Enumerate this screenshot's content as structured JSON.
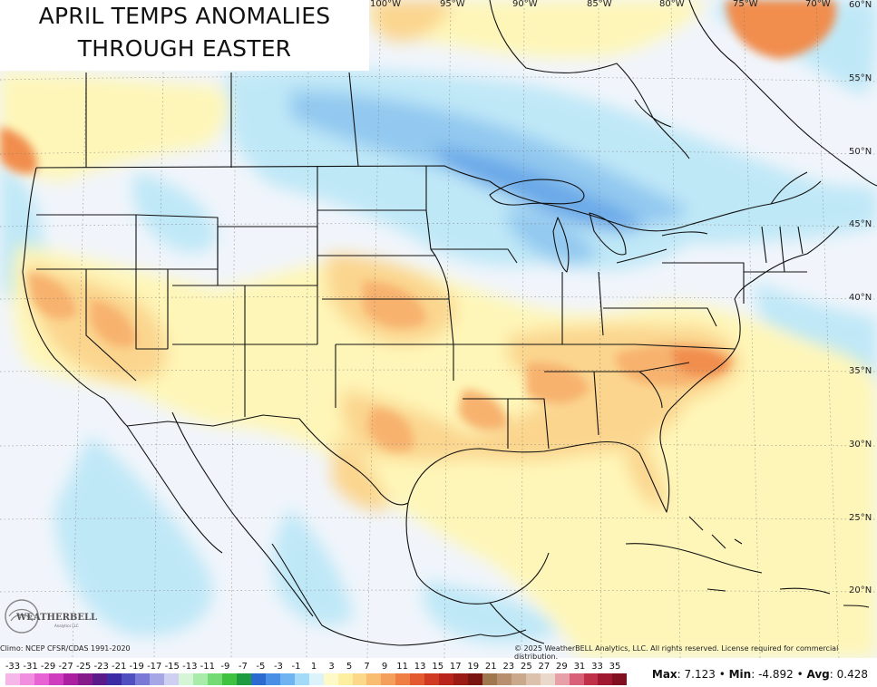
{
  "title": {
    "line1": "APRIL TEMPS ANOMALIES",
    "line2": "THROUGH EASTER"
  },
  "longitude_labels": [
    "100°W",
    "95°W",
    "90°W",
    "85°W",
    "80°W",
    "75°W",
    "70°W"
  ],
  "latitude_labels": [
    "60°N",
    "55°N",
    "50°N",
    "45°N",
    "40°N",
    "35°N",
    "30°N",
    "25°N",
    "20°N"
  ],
  "logo": {
    "name": "WEATHERBELL",
    "sub": "Analytics LLC"
  },
  "footer": {
    "climo": "Climo: NCEP CFSR/CDAS 1991-2020",
    "copyright": "© 2025 WeatherBELL Analytics, LLC. All rights reserved. License required for commercial distribution."
  },
  "legend": {
    "ticks": [
      "-33",
      "-31",
      "-29",
      "-27",
      "-25",
      "-23",
      "-21",
      "-19",
      "-17",
      "-15",
      "-13",
      "-11",
      "-9",
      "-7",
      "-5",
      "-3",
      "-1",
      "1",
      "3",
      "5",
      "7",
      "9",
      "11",
      "13",
      "15",
      "17",
      "19",
      "21",
      "23",
      "25",
      "27",
      "29",
      "31",
      "33",
      "35"
    ],
    "colors": [
      "#f6b6e8",
      "#f28ee0",
      "#e763d3",
      "#cf3cbe",
      "#ab1fa1",
      "#861a8a",
      "#5b1a8a",
      "#3b2ba4",
      "#4f4fc0",
      "#7a7ad6",
      "#a6a6e6",
      "#cfcff2",
      "#d6f5d6",
      "#a9eca9",
      "#74db74",
      "#3fc23f",
      "#1f9a3f",
      "#2d6ad0",
      "#4a8fe6",
      "#6fb3f2",
      "#a3daf7",
      "#dcf3fb",
      "#fefac8",
      "#fdeea0",
      "#fcd98a",
      "#f9bd72",
      "#f4a05c",
      "#ee7e44",
      "#e35a30",
      "#d03a22",
      "#b8231a",
      "#9a1a14",
      "#7a140f",
      "#a07850",
      "#b89070",
      "#c9a88c",
      "#dcc2ac",
      "#ead8ca",
      "#e8a0a8",
      "#d86078",
      "#c03048",
      "#a01830",
      "#801020"
    ],
    "min": -33,
    "max": 35
  },
  "stats": {
    "max_label": "Max",
    "max_value": "7.123",
    "min_label": "Min",
    "min_value": "-4.892",
    "avg_label": "Avg",
    "avg_value": "0.428",
    "separator": "•"
  },
  "palette": {
    "water": "#f1f5fb",
    "cold_light": "#bfe8f7",
    "cold_mid": "#93c9f0",
    "cold_deep": "#6aa9e8",
    "warm_light": "#fef6b8",
    "warm_mid": "#fbd58e",
    "warm_deep": "#f7b26e",
    "warm_hot": "#f18d4e",
    "hot_red": "#e0603a",
    "boundary": "#111111"
  }
}
